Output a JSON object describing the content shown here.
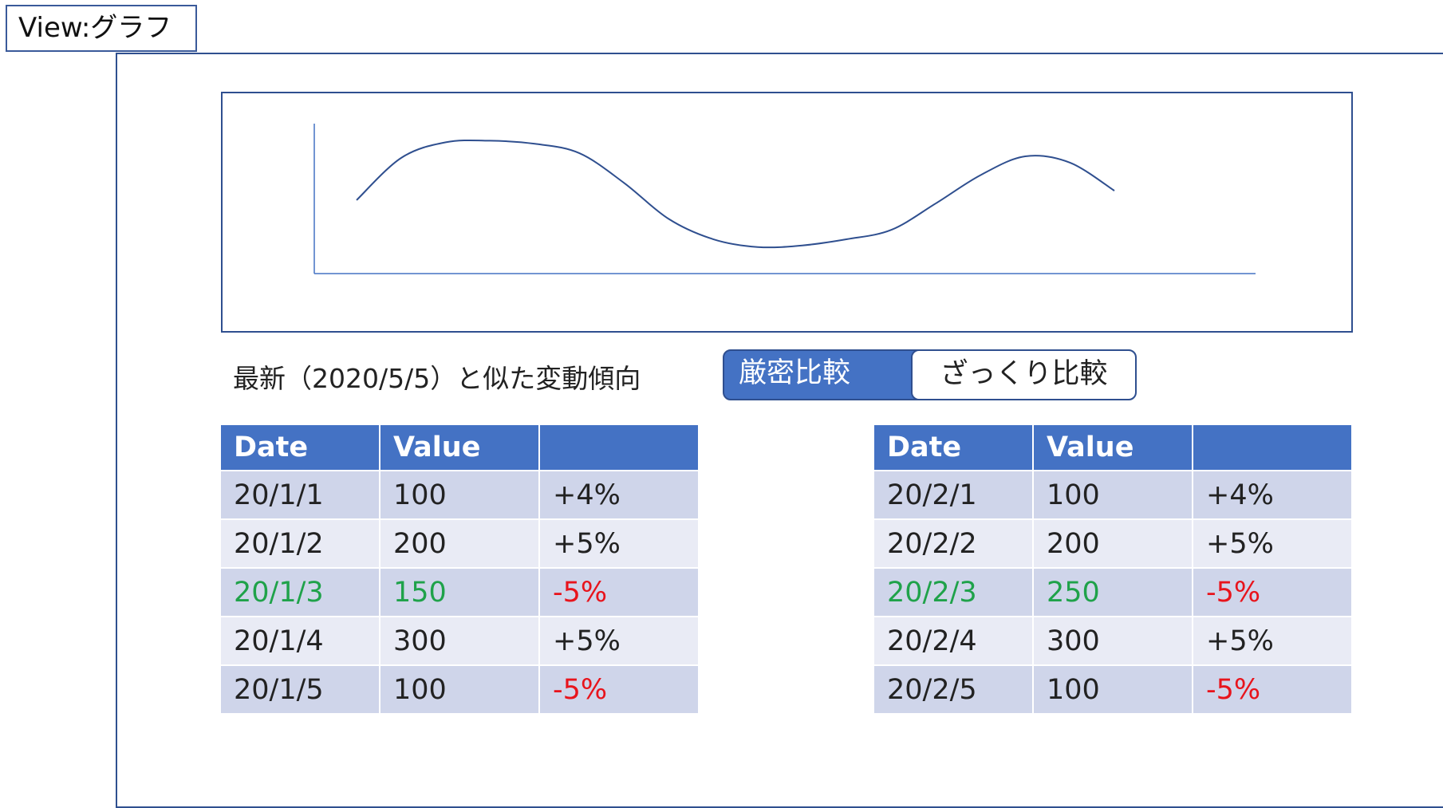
{
  "view_tag": "View:グラフ",
  "chart_data": {
    "type": "line",
    "title": "",
    "xlabel": "",
    "ylabel": "",
    "series": [
      {
        "values": [
          47,
          74,
          84,
          85,
          83,
          77,
          58,
          35,
          22,
          17,
          18,
          22,
          28,
          45,
          63,
          75,
          71,
          53
        ]
      }
    ],
    "grid": false,
    "ylim": [
      0,
      100
    ],
    "color": "#2f4f8f"
  },
  "similar_label": "最新（2020/5/5）と似た変動傾向",
  "toggle": {
    "strict_label": "厳密比較",
    "rough_label": "ざっくり比較",
    "selected": "strict",
    "active_color": "#4472c4"
  },
  "tables": {
    "left": {
      "headers": [
        "Date",
        "Value",
        ""
      ],
      "rows": [
        {
          "date": "20/1/1",
          "value": "100",
          "change": "+4%",
          "highlight": false,
          "negative": false
        },
        {
          "date": "20/1/2",
          "value": "200",
          "change": "+5%",
          "highlight": false,
          "negative": false
        },
        {
          "date": "20/1/3",
          "value": "150",
          "change": "-5%",
          "highlight": true,
          "negative": true
        },
        {
          "date": "20/1/4",
          "value": "300",
          "change": "+5%",
          "highlight": false,
          "negative": false
        },
        {
          "date": "20/1/5",
          "value": "100",
          "change": "-5%",
          "highlight": false,
          "negative": true
        }
      ]
    },
    "right": {
      "headers": [
        "Date",
        "Value",
        ""
      ],
      "rows": [
        {
          "date": "20/2/1",
          "value": "100",
          "change": "+4%",
          "highlight": false,
          "negative": false
        },
        {
          "date": "20/2/2",
          "value": "200",
          "change": "+5%",
          "highlight": false,
          "negative": false
        },
        {
          "date": "20/2/3",
          "value": "250",
          "change": "-5%",
          "highlight": true,
          "negative": true
        },
        {
          "date": "20/2/4",
          "value": "300",
          "change": "+5%",
          "highlight": false,
          "negative": false
        },
        {
          "date": "20/2/5",
          "value": "100",
          "change": "-5%",
          "highlight": false,
          "negative": true
        }
      ]
    }
  },
  "colors": {
    "header_bg": "#4472c4",
    "row_odd": "#cfd5ea",
    "row_even": "#e9ebf5",
    "highlight_text": "#1fa24a",
    "negative_text": "#e8141c",
    "border": "#2f4f8f"
  }
}
